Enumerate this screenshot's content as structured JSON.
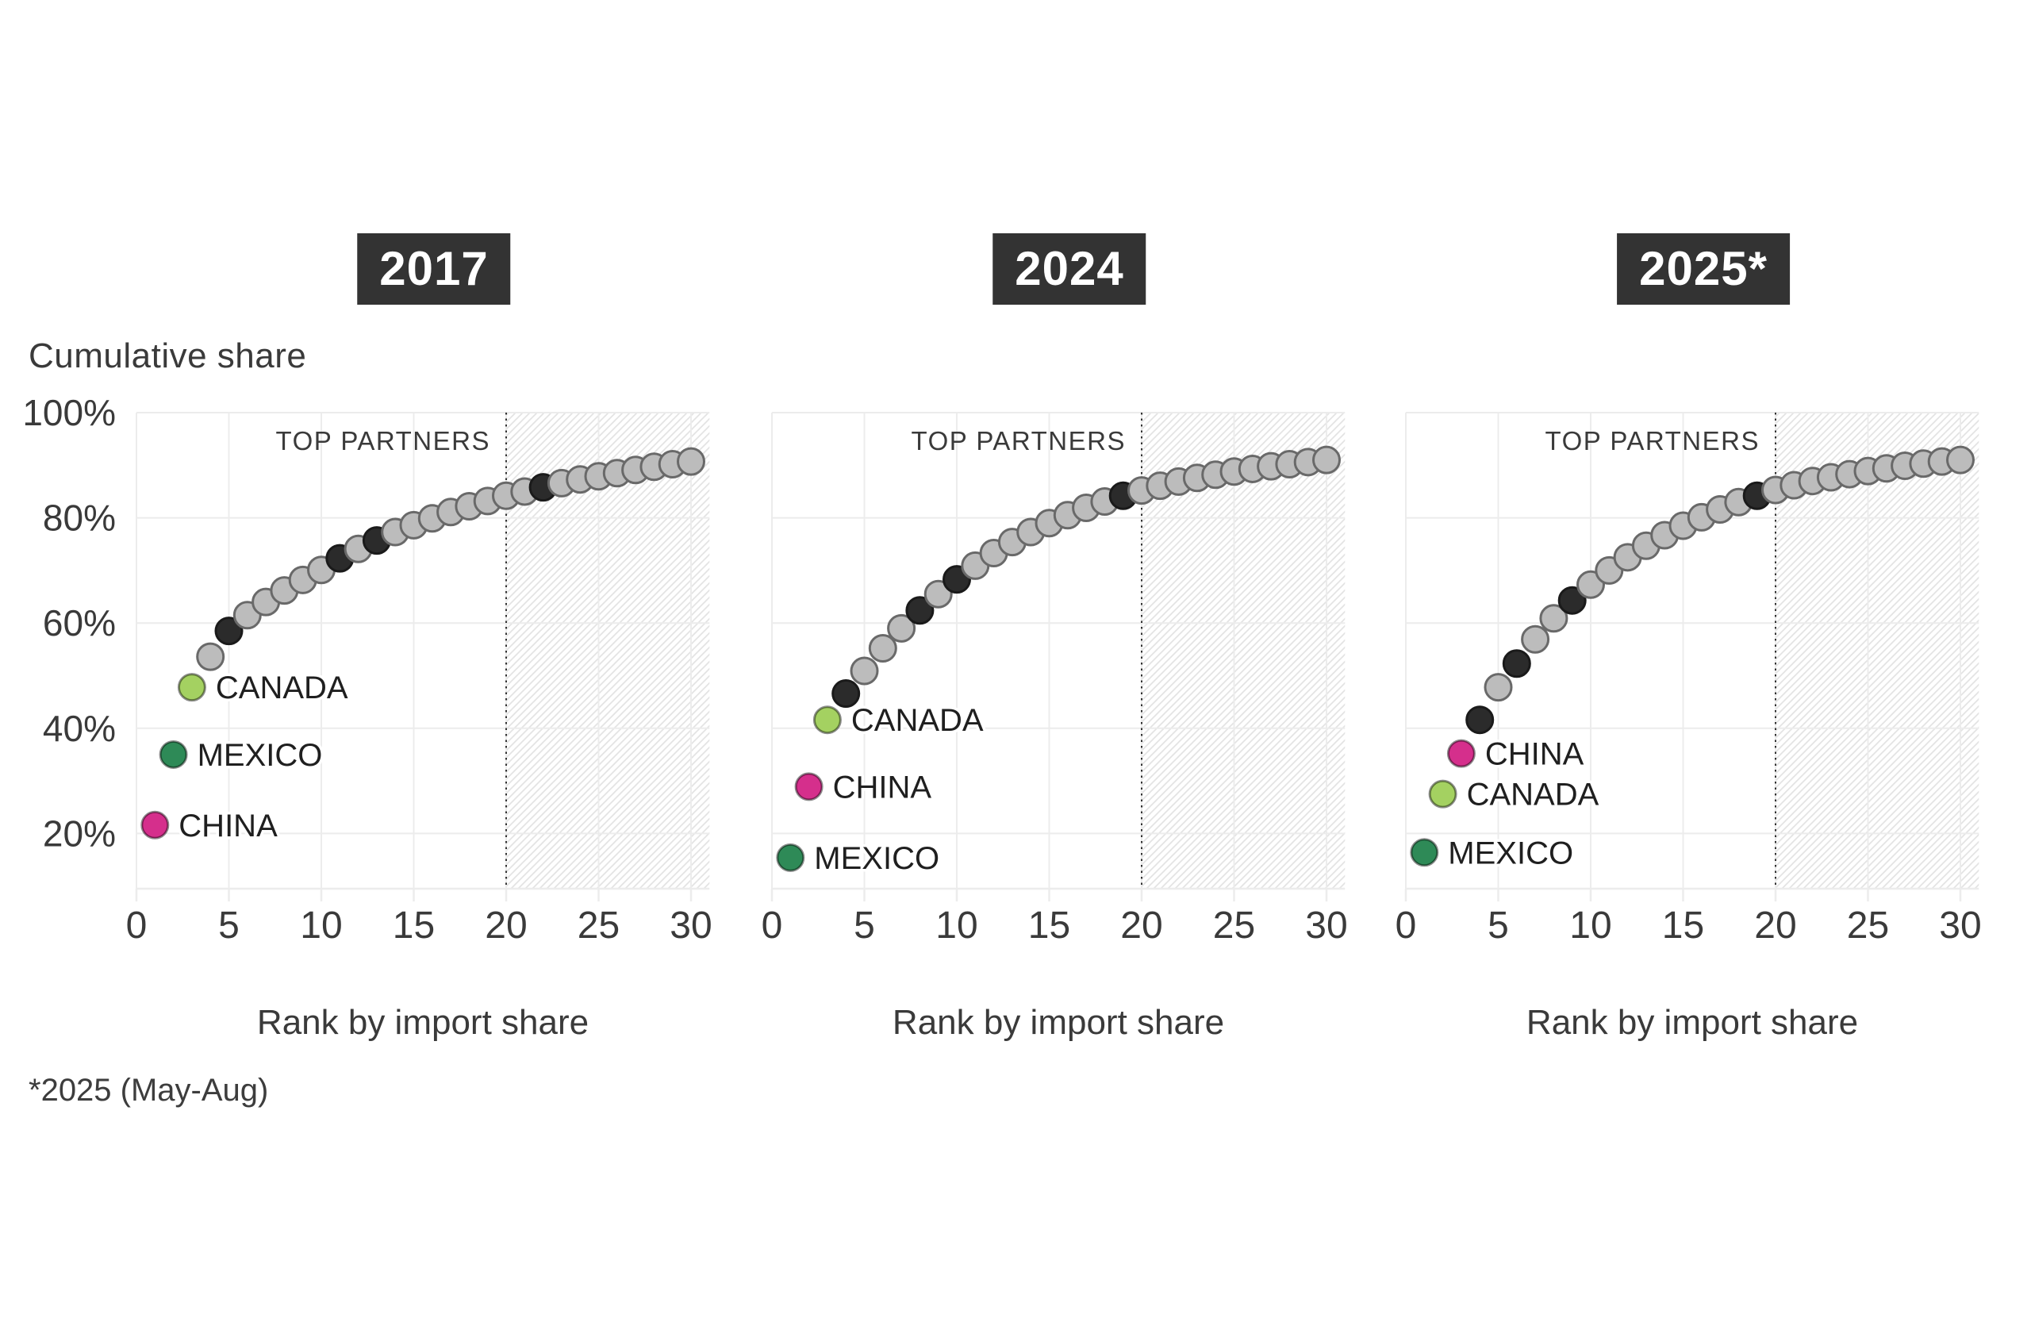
{
  "page": {
    "y_axis_title": "Cumulative share",
    "x_axis_label": "Rank by import share",
    "annotation_label": "TOP PARTNERS",
    "footnote": "*2025 (May-Aug)"
  },
  "colors": {
    "china": "#d52f8c",
    "mexico": "#2e8a57",
    "canada": "#a4d161",
    "highlight_dot": "#2b2b2b",
    "default_dot": "#bcbcbc",
    "default_dot_stroke": "#696969",
    "title_badge_bg": "#333333",
    "title_badge_fg": "#ffffff",
    "grid": "#ececec",
    "hatch": "#e3e3e3",
    "cutoff_line": "#333333",
    "text": "#3a3a3a",
    "label_text": "#1f1f1f"
  },
  "axes": {
    "x_ticks": [
      0,
      5,
      10,
      15,
      20,
      25,
      30
    ],
    "y_ticks": [
      {
        "value": 100,
        "label": "100%"
      },
      {
        "value": 80,
        "label": "80%"
      },
      {
        "value": 60,
        "label": "60%"
      },
      {
        "value": 40,
        "label": "40%"
      },
      {
        "value": 20,
        "label": "20%"
      }
    ],
    "cutoff_rank": 20,
    "x_definition": "rank by import share (1-30)",
    "ylim": [
      10,
      100
    ]
  },
  "chart_data": [
    {
      "type": "scatter",
      "title": "2017",
      "xlabel": "Rank by import share",
      "cumulative_share_pct": [
        21.6,
        35.0,
        47.8,
        53.6,
        58.5,
        61.5,
        64.0,
        66.2,
        68.2,
        70.1,
        72.3,
        74.1,
        75.7,
        77.3,
        78.6,
        79.9,
        81.1,
        82.2,
        83.2,
        84.2,
        85.0,
        85.8,
        86.6,
        87.3,
        87.9,
        88.5,
        89.1,
        89.7,
        90.2,
        90.7
      ],
      "highlighted_ranks": [
        5,
        11,
        13,
        22
      ],
      "labeled_points": [
        {
          "rank": 1,
          "label": "CHINA",
          "value": 21.6,
          "color": "china"
        },
        {
          "rank": 2,
          "label": "MEXICO",
          "value": 35.0,
          "color": "mexico"
        },
        {
          "rank": 3,
          "label": "CANADA",
          "value": 47.8,
          "color": "canada"
        }
      ]
    },
    {
      "type": "scatter",
      "title": "2024",
      "xlabel": "Rank by import share",
      "cumulative_share_pct": [
        15.4,
        28.9,
        41.6,
        46.6,
        50.9,
        55.2,
        59.0,
        62.4,
        65.5,
        68.3,
        70.9,
        73.3,
        75.4,
        77.3,
        79.0,
        80.5,
        81.9,
        83.1,
        84.2,
        85.2,
        86.1,
        86.9,
        87.6,
        88.2,
        88.8,
        89.3,
        89.8,
        90.2,
        90.6,
        91.0
      ],
      "highlighted_ranks": [
        4,
        8,
        10,
        19
      ],
      "labeled_points": [
        {
          "rank": 1,
          "label": "MEXICO",
          "value": 15.4,
          "color": "mexico"
        },
        {
          "rank": 2,
          "label": "CHINA",
          "value": 28.9,
          "color": "china"
        },
        {
          "rank": 3,
          "label": "CANADA",
          "value": 41.6,
          "color": "canada"
        }
      ]
    },
    {
      "type": "scatter",
      "title": "2025*",
      "xlabel": "Rank by import share",
      "cumulative_share_pct": [
        16.4,
        27.5,
        35.2,
        41.6,
        47.8,
        52.3,
        56.9,
        60.9,
        64.3,
        67.3,
        70.0,
        72.5,
        74.7,
        76.7,
        78.5,
        80.1,
        81.6,
        83.0,
        84.2,
        85.3,
        86.2,
        87.0,
        87.7,
        88.3,
        88.9,
        89.4,
        89.9,
        90.3,
        90.7,
        91.0
      ],
      "highlighted_ranks": [
        4,
        6,
        9,
        19
      ],
      "labeled_points": [
        {
          "rank": 1,
          "label": "MEXICO",
          "value": 16.4,
          "color": "mexico"
        },
        {
          "rank": 2,
          "label": "CANADA",
          "value": 27.5,
          "color": "canada"
        },
        {
          "rank": 3,
          "label": "CHINA",
          "value": 35.2,
          "color": "china"
        }
      ]
    }
  ]
}
